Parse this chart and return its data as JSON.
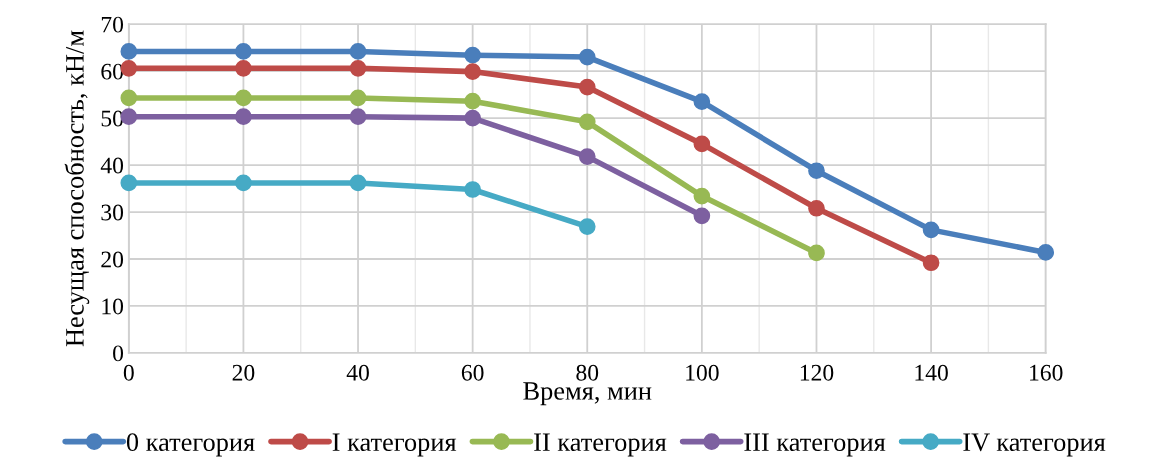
{
  "chart_data": {
    "type": "line",
    "xlabel": "Время, мин",
    "ylabel": "Несущая способность, кН/м",
    "x": [
      0,
      20,
      40,
      60,
      80,
      100,
      120,
      140,
      160
    ],
    "series": [
      {
        "name": "0 категория",
        "color": "#4a7ebb",
        "values": [
          64.2,
          64.2,
          64.2,
          63.4,
          63.0,
          53.5,
          38.8,
          26.2,
          21.4
        ]
      },
      {
        "name": "I категория",
        "color": "#be4b48",
        "values": [
          60.6,
          60.6,
          60.6,
          59.9,
          56.6,
          44.5,
          30.8,
          19.2,
          null
        ]
      },
      {
        "name": "II категория",
        "color": "#98b954",
        "values": [
          54.3,
          54.3,
          54.3,
          53.6,
          49.2,
          33.4,
          21.3,
          null,
          null
        ]
      },
      {
        "name": "III категория",
        "color": "#7d60a0",
        "values": [
          50.3,
          50.3,
          50.3,
          50.0,
          41.8,
          29.2,
          null,
          null,
          null
        ]
      },
      {
        "name": "IV категория",
        "color": "#46aac5",
        "values": [
          36.2,
          36.2,
          36.2,
          34.8,
          26.9,
          null,
          null,
          null,
          null
        ]
      }
    ],
    "xlim": [
      0,
      160
    ],
    "xticks": [
      0,
      20,
      40,
      60,
      80,
      100,
      120,
      140,
      160
    ],
    "ylim": [
      0,
      70
    ],
    "yticks": [
      0,
      10,
      20,
      30,
      40,
      50,
      60,
      70
    ],
    "grid": true,
    "legend": "bottom",
    "marker": "circle",
    "line_style": "solid"
  }
}
